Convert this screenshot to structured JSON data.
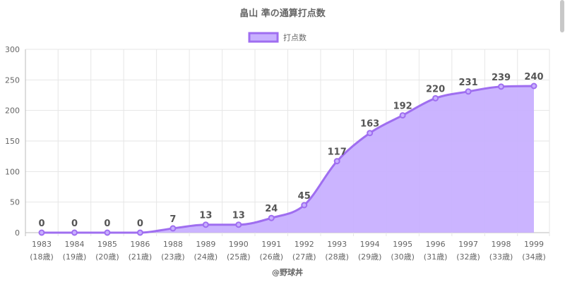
{
  "chart_data": {
    "type": "area",
    "title": "畠山 準の通算打点数",
    "x": [
      "1983",
      "1984",
      "1985",
      "1986",
      "1988",
      "1989",
      "1990",
      "1991",
      "1992",
      "1993",
      "1994",
      "1995",
      "1996",
      "1997",
      "1998",
      "1999"
    ],
    "x_sub": [
      "(18歳)",
      "(19歳)",
      "(20歳)",
      "(21歳)",
      "(23歳)",
      "(24歳)",
      "(25歳)",
      "(26歳)",
      "(27歳)",
      "(28歳)",
      "(29歳)",
      "(30歳)",
      "(31歳)",
      "(32歳)",
      "(33歳)",
      "(34歳)"
    ],
    "series": [
      {
        "name": "打点数",
        "values": [
          0,
          0,
          0,
          0,
          7,
          13,
          13,
          24,
          45,
          117,
          163,
          192,
          220,
          231,
          239,
          240
        ],
        "color": "#9f6ef0",
        "fill": "#c8b0ff"
      }
    ],
    "ylim": [
      0,
      300
    ],
    "yticks": [
      0,
      50,
      100,
      150,
      200,
      250,
      300
    ],
    "grid": true,
    "legend": "top-center",
    "data_labels": true
  },
  "watermark": "@野球丼",
  "colors": {
    "line": "#9f6ef0",
    "fill": "#c8b0ff",
    "grid": "#e8e8e8",
    "text": "#666666"
  }
}
